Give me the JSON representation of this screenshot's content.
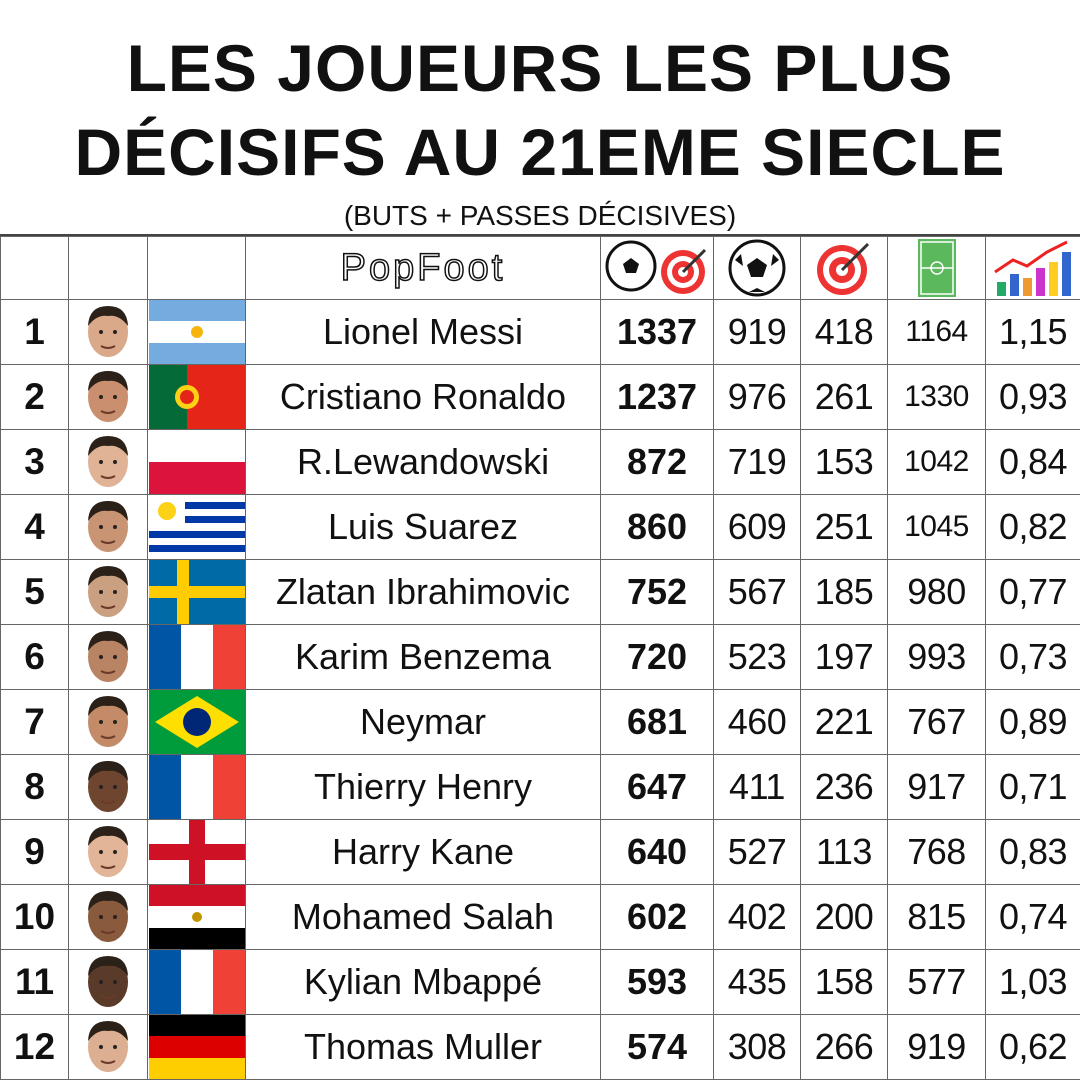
{
  "header": {
    "title": [
      "LES JOUEURS LES PLUS",
      "DÉCISIFS AU 21EME SIECLE"
    ],
    "subtitle": "(BUTS + PASSES DÉCISIVES)",
    "brand": "PopFoot"
  },
  "table": {
    "rows": [
      {
        "rank": 1,
        "name": "Lionel Messi",
        "total": 1337,
        "goals": 919,
        "assists": 418,
        "matches": 1164,
        "ratio": "1,15"
      },
      {
        "rank": 2,
        "name": "Cristiano Ronaldo",
        "total": 1237,
        "goals": 976,
        "assists": 261,
        "matches": 1330,
        "ratio": "0,93"
      },
      {
        "rank": 3,
        "name": "R.Lewandowski",
        "total": 872,
        "goals": 719,
        "assists": 153,
        "matches": 1042,
        "ratio": "0,84"
      },
      {
        "rank": 4,
        "name": "Luis Suarez",
        "total": 860,
        "goals": 609,
        "assists": 251,
        "matches": 1045,
        "ratio": "0,82"
      },
      {
        "rank": 5,
        "name": "Zlatan Ibrahimovic",
        "total": 752,
        "goals": 567,
        "assists": 185,
        "matches": 980,
        "ratio": "0,77"
      },
      {
        "rank": 6,
        "name": "Karim Benzema",
        "total": 720,
        "goals": 523,
        "assists": 197,
        "matches": 993,
        "ratio": "0,73"
      },
      {
        "rank": 7,
        "name": "Neymar",
        "total": 681,
        "goals": 460,
        "assists": 221,
        "matches": 767,
        "ratio": "0,89"
      },
      {
        "rank": 8,
        "name": "Thierry Henry",
        "total": 647,
        "goals": 411,
        "assists": 236,
        "matches": 917,
        "ratio": "0,71"
      },
      {
        "rank": 9,
        "name": "Harry Kane",
        "total": 640,
        "goals": 527,
        "assists": 113,
        "matches": 768,
        "ratio": "0,83"
      },
      {
        "rank": 10,
        "name": "Mohamed Salah",
        "total": 602,
        "goals": 402,
        "assists": 200,
        "matches": 815,
        "ratio": "0,74"
      },
      {
        "rank": 11,
        "name": "Kylian Mbappé",
        "total": 593,
        "goals": 435,
        "assists": 158,
        "matches": 577,
        "ratio": "1,03"
      },
      {
        "rank": 12,
        "name": "Thomas Muller",
        "total": 574,
        "goals": 308,
        "assists": 266,
        "matches": 919,
        "ratio": "0,62"
      }
    ]
  }
}
